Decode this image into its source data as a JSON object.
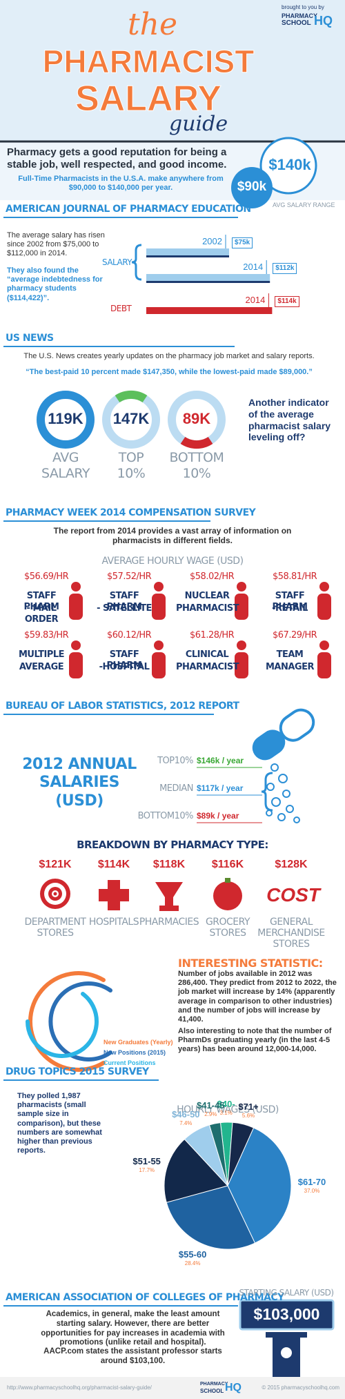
{
  "header": {
    "the": "the",
    "title1": "PHARMACIST",
    "title2": "SALARY",
    "guide": "guide",
    "brought": "brought to you by",
    "brand1": "PHARMACY",
    "brand2": "SCHOOL",
    "brand3": "HQ"
  },
  "intro": {
    "headline": "Pharmacy gets a good reputation for being a stable job, well respected, and good income.",
    "subtext": "Full-Time Pharmacists in the U.S.A. make anywhere from $90,000 to $140,000 per year.",
    "high": "$140k",
    "low": "$90k",
    "range_label": "AVG SALARY RANGE"
  },
  "ajpe": {
    "heading": "AMERICAN JOURNAL OF PHARMACY EDUCATION",
    "text1": "The average salary has risen since 2002 from $75,000 to $112,000 in 2014.",
    "text2": "They also found the “average indebtedness for pharmacy students ($114,422)”.",
    "salary_label": "SALARY",
    "debt_label": "DEBT",
    "bars": [
      {
        "year": "2002",
        "label": "$75k",
        "value": 75
      },
      {
        "year": "2014",
        "label": "$112k",
        "value": 112
      },
      {
        "year": "2014",
        "label": "$114k",
        "value": 114
      }
    ]
  },
  "usnews": {
    "heading": "US NEWS",
    "text": "The U.S. News creates yearly updates on the pharmacy job market and salary reports.",
    "quote": "“The best-paid 10 percent made $147,350, while the lowest-paid made $89,000.”",
    "stats": [
      {
        "value": "119K",
        "label1": "AVG",
        "label2": "SALARY"
      },
      {
        "value": "147K",
        "label1": "TOP",
        "label2": "10%"
      },
      {
        "value": "89K",
        "label1": "BOTTOM",
        "label2": "10%"
      }
    ],
    "aside": "Another indicator of the average pharmacist salary leveling off?"
  },
  "pharmacy_week": {
    "heading": "PHARMACY WEEK 2014 COMPENSATION SURVEY",
    "intro": "The report from 2014  provides a vast array of information on pharmacists in different fields.",
    "subheading": "AVERAGE HOURLY WAGE (USD)",
    "wages": [
      {
        "wage": "$56.69/HR",
        "role": [
          "STAFF PHARM",
          "- MAIL ORDER"
        ]
      },
      {
        "wage": "$57.52/HR",
        "role": [
          "STAFF PHARM",
          "- SATELLITE"
        ]
      },
      {
        "wage": "$58.02/HR",
        "role": [
          "NUCLEAR",
          "PHARMACIST"
        ]
      },
      {
        "wage": "$58.81/HR",
        "role": [
          "STAFF PHARM",
          "-RETAIL"
        ]
      },
      {
        "wage": "$59.83/HR",
        "role": [
          "MULTIPLE",
          "AVERAGE"
        ]
      },
      {
        "wage": "$60.12/HR",
        "role": [
          "STAFF PHARM",
          "-HOSPITAL"
        ]
      },
      {
        "wage": "$61.28/HR",
        "role": [
          "CLINICAL",
          "PHARMACIST"
        ]
      },
      {
        "wage": "$67.29/HR",
        "role": [
          "TEAM",
          "MANAGER"
        ]
      }
    ]
  },
  "bls": {
    "heading": "BUREAU OF LABOR STATISTICS, 2012 REPORT",
    "title": "2012 ANNUAL SALARIES (USD)",
    "rows": [
      {
        "label": "TOP10%",
        "value": "$146k / year"
      },
      {
        "label": "MEDIAN",
        "value": "$117k / year"
      },
      {
        "label": "BOTTOM10%",
        "value": "$89k / year"
      }
    ]
  },
  "breakdown": {
    "heading": "BREAKDOWN BY PHARMACY TYPE:",
    "types": [
      {
        "salary": "$121K",
        "name": [
          "DEPARTMENT",
          "STORES"
        ]
      },
      {
        "salary": "$114K",
        "name": [
          "HOSPITALS"
        ]
      },
      {
        "salary": "$118K",
        "name": [
          "PHARMACIES"
        ]
      },
      {
        "salary": "$116K",
        "name": [
          "GROCERY",
          "STORES"
        ]
      },
      {
        "salary": "$128K",
        "name": [
          "GENERAL",
          "MERCHANDISE",
          "STORES"
        ]
      }
    ],
    "cost_logo": "COST"
  },
  "interesting": {
    "heading": "INTERESTING STATISTIC:",
    "p1": "Number of jobs available in 2012 was 286,400. They predict from 2012 to 2022, the job market will increase by 14% (apparently average in comparison to other industries) and the number of jobs will increase by 41,400.",
    "p2": "Also interesting to note that the number of PharmDs graduating yearly (in the last 4-5 years) has been around 12,000-14,000.",
    "legend": [
      "New Graduates (Yearly)",
      "New Positions (2015)",
      "Current Positions"
    ]
  },
  "drug_topics": {
    "heading": "DRUG TOPICS 2015 SURVEY",
    "text": "They polled 1,987 pharmacists (small sample size in comparison), but these numbers are somewhat higher than previous reports."
  },
  "chart_data": {
    "type": "pie",
    "title": "HOURLY WAGES (USD)",
    "categories": [
      "$40-",
      "$71+",
      "$61-70",
      "$55-60",
      "$51-55",
      "$46-50",
      "$41-45"
    ],
    "values": [
      3.1,
      5.6,
      37.0,
      28.4,
      17.7,
      7.4,
      2.9
    ],
    "value_labels": [
      "3.1%",
      "5.6%",
      "37.0%",
      "28.4%",
      "17.7%",
      "7.4%",
      "2.9%"
    ],
    "colors": [
      "#22b58e",
      "#16284a",
      "#2b82c6",
      "#1f62a0",
      "#12284a",
      "#9fcdec",
      "#1e6e6e"
    ]
  },
  "aacp": {
    "heading": "AMERICAN ASSOCIATION OF COLLEGES OF PHARMACY",
    "p1": "Academics, in general, make the least amount starting salary. However, there are better opportunities for pay increases in academia with promotions (unlike retail and hospital).",
    "p2": "AACP.com states the assistant professor starts around $103,100.",
    "sign_label": "STARTING SALARY (USD)",
    "sign_value": "$103,000"
  },
  "footer": {
    "url": "http://www.pharmacyschoolhq.org/pharmacist-salary-guide/",
    "copyright": "© 2015 pharmacyschoolhq.com"
  }
}
